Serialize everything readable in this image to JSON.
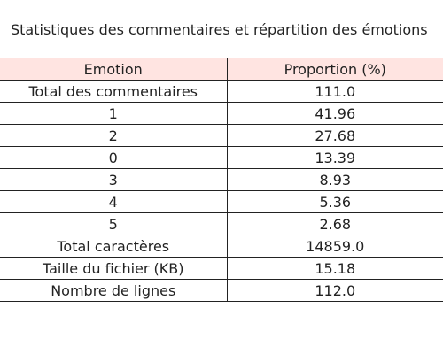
{
  "chart_data": {
    "type": "table",
    "title": "Statistiques des commentaires et répartition des émotions",
    "header_color": "#ffe4e1",
    "columns": [
      "Emotion",
      "Proportion (%)"
    ],
    "rows": [
      [
        "Total des commentaires",
        "111.0"
      ],
      [
        "1",
        "41.96"
      ],
      [
        "2",
        "27.68"
      ],
      [
        "0",
        "13.39"
      ],
      [
        "3",
        "8.93"
      ],
      [
        "4",
        "5.36"
      ],
      [
        "5",
        "2.68"
      ],
      [
        "Total caractères",
        "14859.0"
      ],
      [
        "Taille du fichier (KB)",
        "15.18"
      ],
      [
        "Nombre de lignes",
        "112.0"
      ]
    ]
  }
}
